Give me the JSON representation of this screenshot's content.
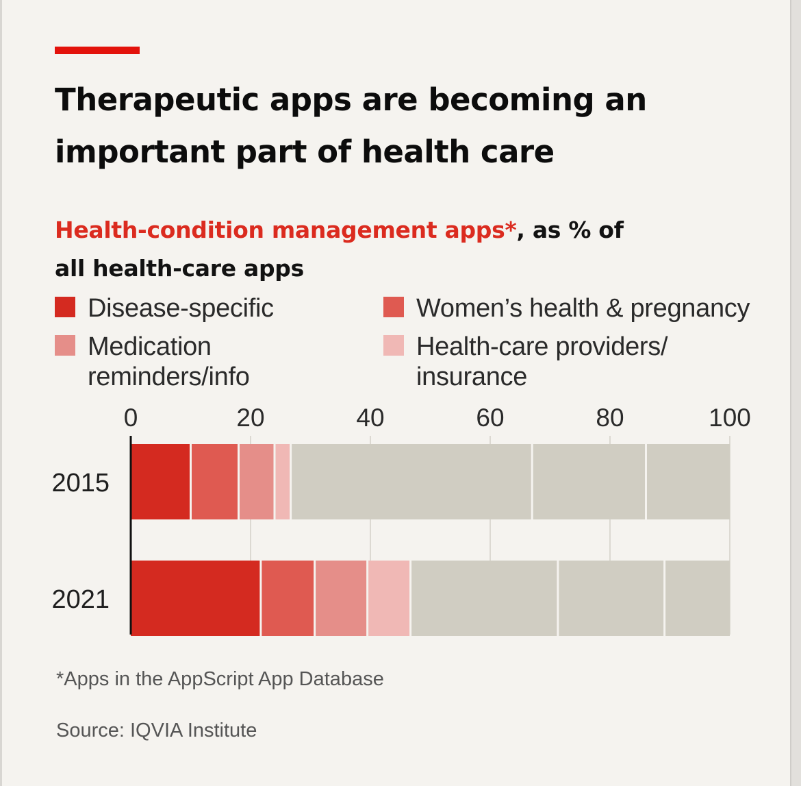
{
  "header": {
    "title": "Therapeutic apps are becoming an important part of health care",
    "subtitle_highlight": "Health-condition management apps*",
    "subtitle_rest": ", as % of all health-care apps"
  },
  "legend": [
    {
      "label": "Disease-specific",
      "color": "#d42a20"
    },
    {
      "label": "Women’s health & pregnancy",
      "color": "#df5a51"
    },
    {
      "label": "Medication reminders/info",
      "color": "#e58e89"
    },
    {
      "label": "Health-care providers/ insurance",
      "color": "#f0b8b5"
    }
  ],
  "chart_data": {
    "type": "bar",
    "orientation": "horizontal",
    "stacked": true,
    "categories": [
      "2015",
      "2021"
    ],
    "xlim": [
      0,
      100
    ],
    "xticks": [
      "0",
      "20",
      "40",
      "60",
      "80",
      "100"
    ],
    "series": [
      {
        "name": "Disease-specific",
        "values": [
          10,
          21.7
        ],
        "color": "#d42a20"
      },
      {
        "name": "Women’s health & pregnancy",
        "values": [
          8,
          9
        ],
        "color": "#df5a51"
      },
      {
        "name": "Medication reminders/info",
        "values": [
          6,
          8.8
        ],
        "color": "#e58e89"
      },
      {
        "name": "Health-care providers/ insurance",
        "values": [
          2.7,
          7.2
        ],
        "color": "#f0b8b5"
      },
      {
        "values": [
          40.3,
          24.6
        ],
        "color": "#d0cdc2"
      },
      {
        "values": [
          19,
          17.8
        ],
        "color": "#d0cdc2"
      },
      {
        "values": [
          14,
          10.9
        ],
        "color": "#d0cdc2"
      }
    ],
    "grid": true
  },
  "footer": {
    "footnote": "*Apps in the AppScript App Database",
    "source": "Source: IQVIA Institute"
  }
}
